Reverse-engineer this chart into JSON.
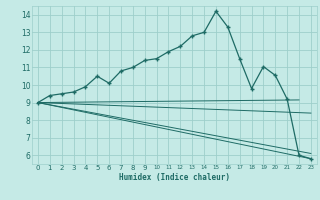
{
  "title": "",
  "xlabel": "Humidex (Indice chaleur)",
  "xlim": [
    -0.5,
    23.5
  ],
  "ylim": [
    5.5,
    14.5
  ],
  "yticks": [
    6,
    7,
    8,
    9,
    10,
    11,
    12,
    13,
    14
  ],
  "xticks": [
    0,
    1,
    2,
    3,
    4,
    5,
    6,
    7,
    8,
    9,
    10,
    11,
    12,
    13,
    14,
    15,
    16,
    17,
    18,
    19,
    20,
    21,
    22,
    23
  ],
  "bg_color": "#c5eae6",
  "grid_color": "#9ecfcb",
  "line_color": "#1e6b65",
  "series_main": [
    [
      0,
      9.0
    ],
    [
      1,
      9.4
    ],
    [
      2,
      9.5
    ],
    [
      3,
      9.6
    ],
    [
      4,
      9.9
    ],
    [
      5,
      10.5
    ],
    [
      6,
      10.1
    ],
    [
      7,
      10.8
    ],
    [
      8,
      11.0
    ],
    [
      9,
      11.4
    ],
    [
      10,
      11.5
    ],
    [
      11,
      11.9
    ],
    [
      12,
      12.2
    ],
    [
      13,
      12.8
    ],
    [
      14,
      13.0
    ],
    [
      15,
      14.2
    ],
    [
      16,
      13.3
    ],
    [
      17,
      11.5
    ],
    [
      18,
      9.8
    ],
    [
      19,
      11.05
    ],
    [
      20,
      10.55
    ],
    [
      21,
      9.2
    ],
    [
      22,
      6.0
    ],
    [
      23,
      5.8
    ]
  ],
  "series_second": [
    [
      0,
      9.0
    ],
    [
      1,
      9.4
    ],
    [
      2,
      9.5
    ],
    [
      3,
      9.6
    ],
    [
      4,
      9.9
    ],
    [
      5,
      10.5
    ],
    [
      6,
      10.1
    ],
    [
      7,
      10.8
    ],
    [
      8,
      11.0
    ],
    [
      9,
      11.4
    ],
    [
      10,
      11.5
    ],
    [
      11,
      11.9
    ],
    [
      12,
      12.2
    ],
    [
      13,
      12.8
    ],
    [
      14,
      13.0
    ],
    [
      15,
      14.2
    ],
    [
      16,
      13.3
    ],
    [
      17,
      11.5
    ],
    [
      18,
      9.8
    ],
    [
      19,
      11.05
    ],
    [
      20,
      10.55
    ],
    [
      21,
      9.2
    ],
    [
      22,
      6.0
    ],
    [
      23,
      5.8
    ]
  ],
  "series_flat": [
    [
      0,
      9.0
    ],
    [
      22,
      9.15
    ]
  ],
  "series_diag1": [
    [
      0,
      9.0
    ],
    [
      23,
      8.4
    ]
  ],
  "series_diag2": [
    [
      0,
      9.0
    ],
    [
      23,
      6.1
    ]
  ],
  "series_diag3": [
    [
      0,
      9.0
    ],
    [
      23,
      5.8
    ]
  ]
}
